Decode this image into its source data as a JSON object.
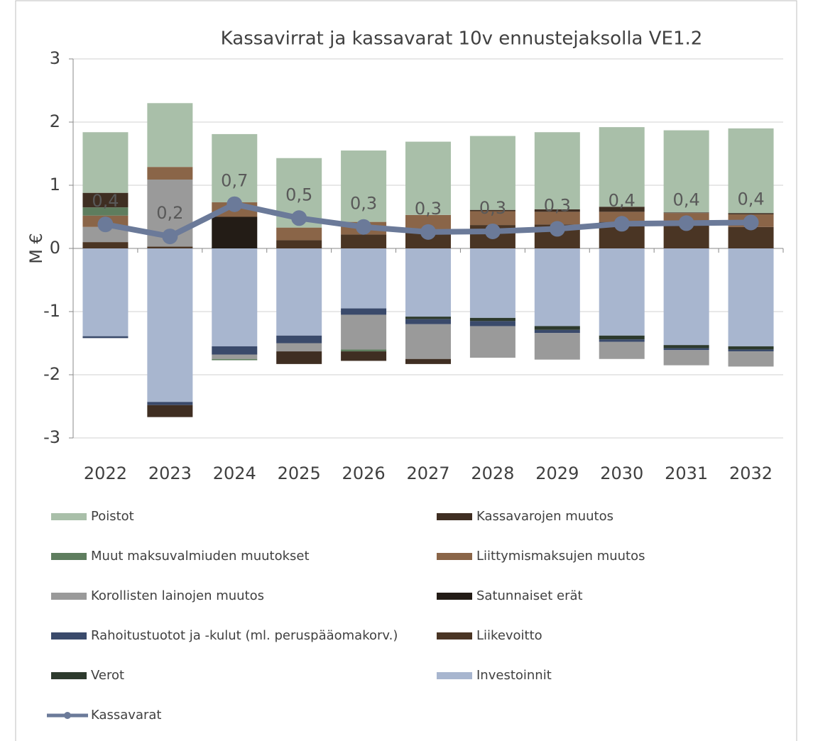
{
  "chart_data": {
    "type": "bar",
    "stacked": true,
    "title": "Kassavirrat ja kassavarat 10v ennustejaksolla VE1.2",
    "ylabel": "M €",
    "categories": [
      "2022",
      "2023",
      "2024",
      "2025",
      "2026",
      "2027",
      "2028",
      "2029",
      "2030",
      "2031",
      "2032"
    ],
    "ylim": [
      -3,
      3
    ],
    "yticks": [
      3,
      2,
      1,
      0,
      -1,
      -2,
      -3
    ],
    "grid": true,
    "series": [
      {
        "name": "Poistot",
        "color": "#a9bfa9",
        "values": [
          0.96,
          1.01,
          1.08,
          1.1,
          1.13,
          1.16,
          1.17,
          1.22,
          1.26,
          1.3,
          1.34
        ]
      },
      {
        "name": "Kassavarojen muutos",
        "color": "#3f2e22",
        "values": [
          0.23,
          -0.19,
          0,
          -0.2,
          -0.15,
          -0.08,
          0.02,
          0.04,
          0.08,
          0.01,
          0.02
        ]
      },
      {
        "name": "Muut maksuvalmiuden muutokset",
        "color": "#5e7d5e",
        "values": [
          0.13,
          0,
          -0.02,
          0,
          -0.03,
          0,
          0,
          0,
          0,
          0,
          0
        ]
      },
      {
        "name": "Liittymismaksujen muutos",
        "color": "#8a6548",
        "values": [
          0.18,
          0.2,
          0.23,
          0.2,
          0.2,
          0.26,
          0.22,
          0.2,
          0.16,
          0.2,
          0.2
        ]
      },
      {
        "name": "Korollisten lainojen muutos",
        "color": "#9a9a9a",
        "values": [
          0.24,
          1.06,
          -0.07,
          -0.13,
          -0.55,
          -0.55,
          -0.5,
          -0.42,
          -0.27,
          -0.24,
          -0.24
        ]
      },
      {
        "name": "Satunnaiset erät",
        "color": "#231c16",
        "values": [
          0,
          0,
          0.5,
          0,
          0,
          0,
          0,
          0,
          0,
          0,
          0
        ]
      },
      {
        "name": "Rahoitustuotot ja -kulut (ml. peruspääomakorv.)",
        "color": "#3a4a6b",
        "values": [
          -0.03,
          -0.05,
          -0.13,
          -0.12,
          -0.1,
          -0.08,
          -0.08,
          -0.05,
          -0.04,
          -0.03,
          -0.03
        ]
      },
      {
        "name": "Liikevoitto",
        "color": "#4a3524",
        "values": [
          0.1,
          0.03,
          0,
          0.13,
          0.22,
          0.27,
          0.37,
          0.38,
          0.42,
          0.36,
          0.34
        ]
      },
      {
        "name": "Verot",
        "color": "#2d3a2d",
        "values": [
          0,
          0,
          0,
          0,
          0,
          -0.04,
          -0.05,
          -0.06,
          -0.06,
          -0.05,
          -0.05
        ]
      },
      {
        "name": "Investoinnit",
        "color": "#a8b6cf",
        "values": [
          -1.39,
          -2.43,
          -1.55,
          -1.38,
          -0.95,
          -1.08,
          -1.1,
          -1.23,
          -1.38,
          -1.53,
          -1.55
        ]
      },
      {
        "name": "Kassavarat",
        "type": "line",
        "color": "#6b7a99",
        "values": [
          0.38,
          0.19,
          0.7,
          0.48,
          0.34,
          0.26,
          0.27,
          0.31,
          0.39,
          0.4,
          0.41
        ],
        "value_labels": [
          "0,4",
          "0,2",
          "0,7",
          "0,5",
          "0,3",
          "0,3",
          "0,3",
          "0,3",
          "0,4",
          "0,4",
          "0,4"
        ]
      }
    ]
  }
}
